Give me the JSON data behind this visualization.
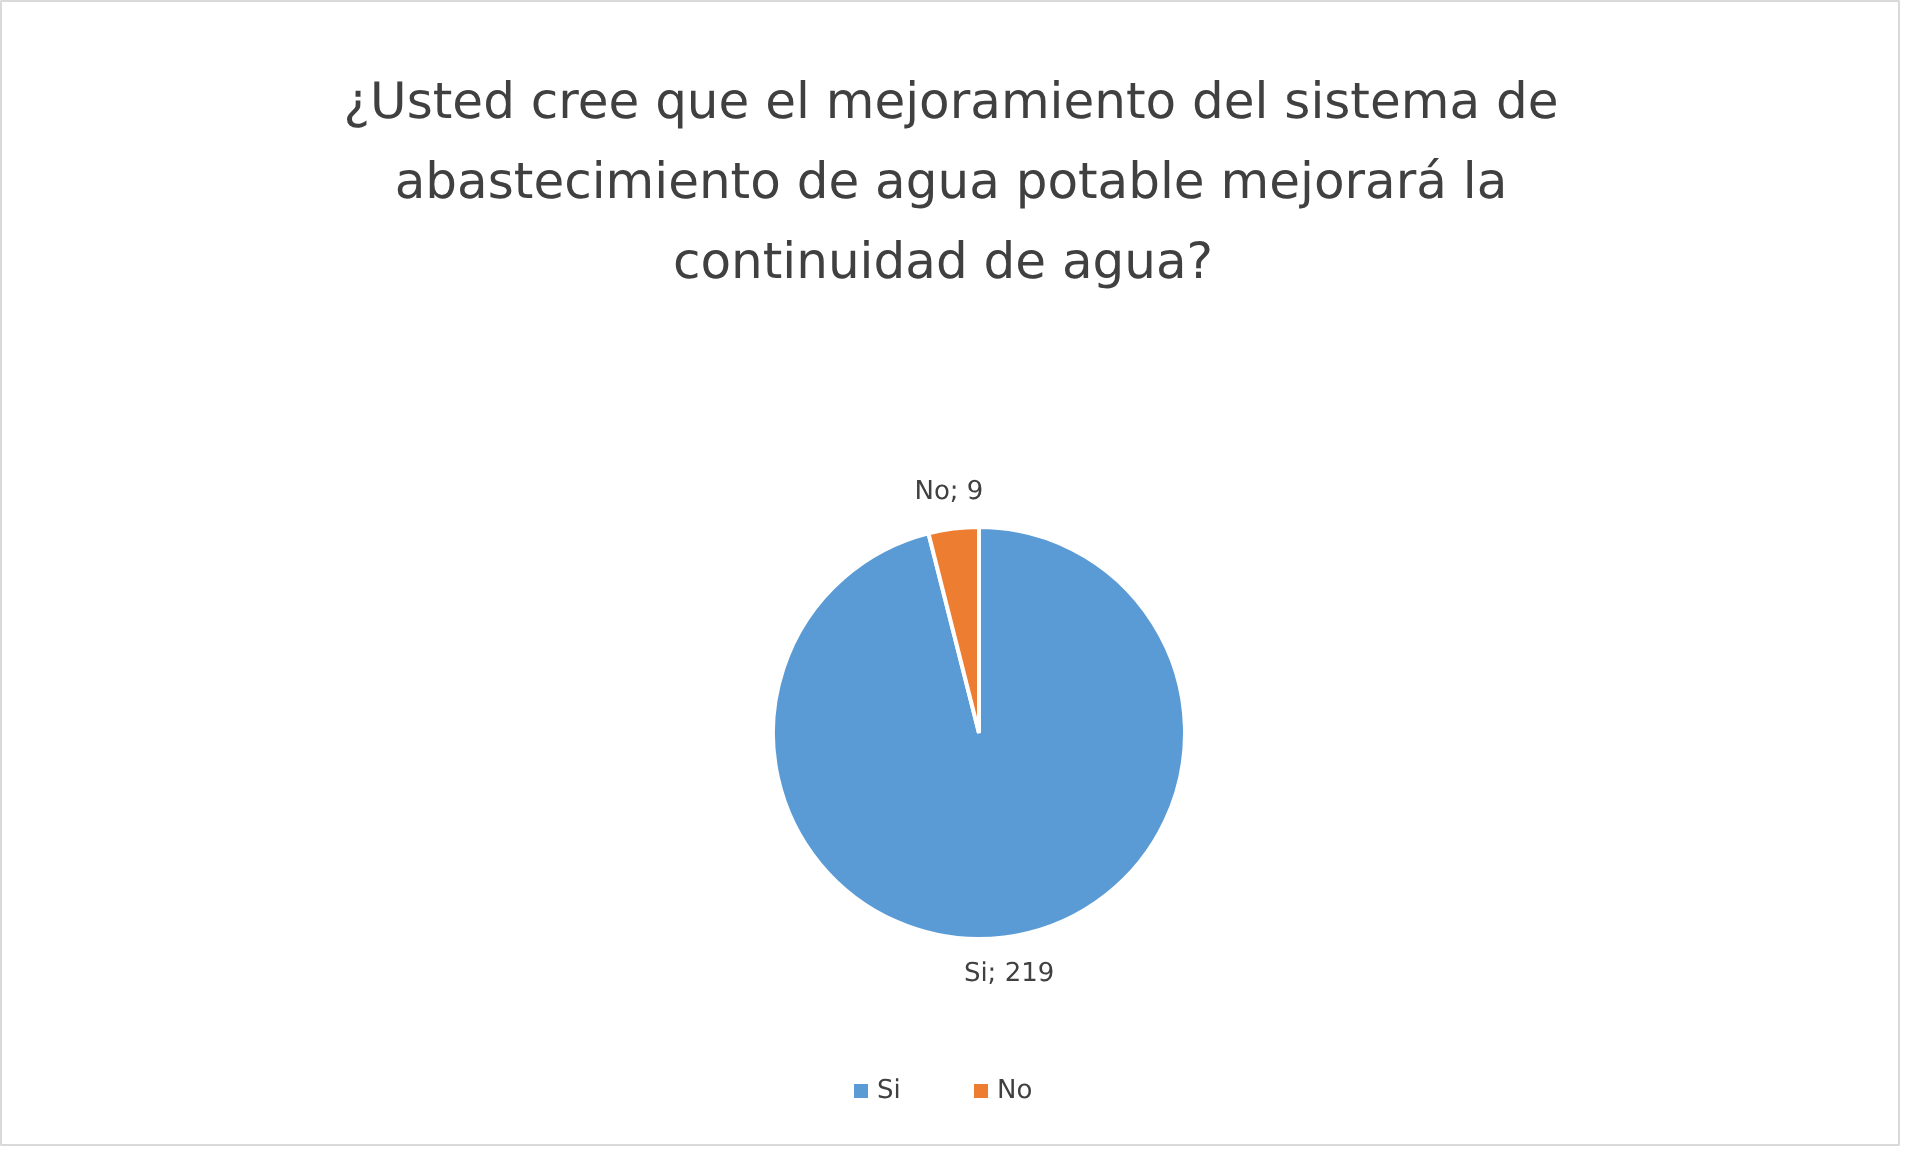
{
  "chart_data": {
    "type": "pie",
    "title": "¿Usted cree que el mejoramiento del sistema de abastecimiento de agua potable mejorará la continuidad  de agua?",
    "categories": [
      "Si",
      "No"
    ],
    "values": [
      219,
      9
    ],
    "colors": [
      "#5b9bd5",
      "#ed7d31"
    ],
    "value_labels": [
      "Si; 219",
      "No; 9"
    ],
    "legend": "bottom"
  }
}
